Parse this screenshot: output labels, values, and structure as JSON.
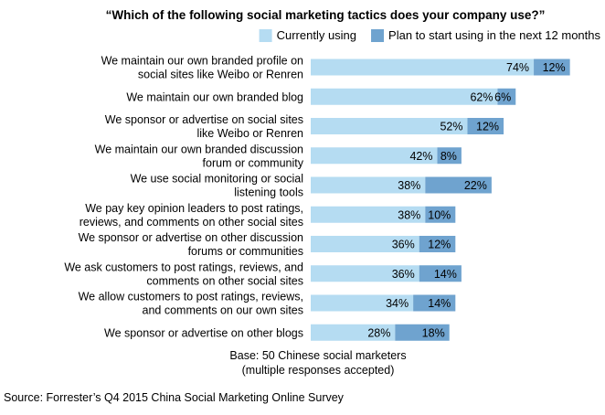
{
  "chart_data": {
    "type": "bar",
    "orientation": "horizontal",
    "stacked": true,
    "title": "“Which of the following social marketing tactics does your company use?”",
    "categories": [
      [
        "We maintain our own branded profile on",
        "social sites like Weibo or Renren"
      ],
      [
        "We maintain our own branded blog"
      ],
      [
        "We sponsor or advertise on social sites",
        "like Weibo or Renren"
      ],
      [
        "We maintain our own branded discussion",
        "forum or community"
      ],
      [
        "We use social monitoring or social",
        "listening tools"
      ],
      [
        "We pay key opinion leaders to post ratings,",
        "reviews, and comments on other social sites"
      ],
      [
        "We sponsor or advertise on other discussion",
        "forums or communities"
      ],
      [
        "We ask customers to post ratings, reviews, and",
        "comments on other social sites"
      ],
      [
        "We allow customers to post ratings, reviews,",
        "and comments on our own sites"
      ],
      [
        "We sponsor or advertise on other blogs"
      ]
    ],
    "series": [
      {
        "name": "Currently using",
        "color": "#b5dcf2",
        "values": [
          74,
          62,
          52,
          42,
          38,
          38,
          36,
          36,
          34,
          28
        ]
      },
      {
        "name": "Plan to start using in the next 12 months",
        "color": "#6fa3cf",
        "values": [
          12,
          6,
          12,
          8,
          22,
          10,
          12,
          14,
          14,
          18
        ]
      }
    ],
    "value_suffix": "%",
    "xlim": [
      0,
      100
    ],
    "grid": false,
    "legend": "top-right"
  },
  "notes": {
    "base_line1": "Base: 50 Chinese social marketers",
    "base_line2": "(multiple responses accepted)",
    "source": "Source: Forrester’s Q4 2015 China Social Marketing Online Survey"
  }
}
